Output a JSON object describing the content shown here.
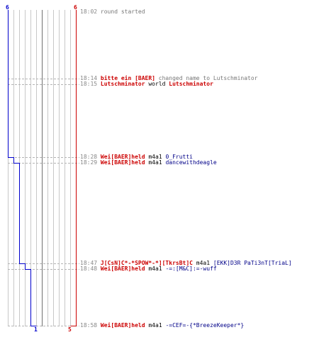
{
  "colors": {
    "team_blue": "#0000cc",
    "team_red": "#cc0000",
    "grid": "#c8c8c8",
    "center": "#707070"
  },
  "score": {
    "blue_start": "6",
    "red_start": "6",
    "blue_end": "1",
    "red_end": "5"
  },
  "events": [
    {
      "time": "18:02",
      "parts": [
        {
          "text": "round started",
          "style": "sys"
        }
      ]
    },
    {
      "time": "18:14",
      "parts": [
        {
          "text": "bitte ein [BAER]",
          "style": "p"
        },
        {
          "text": " changed name to Lutschminator",
          "style": "sys"
        }
      ]
    },
    {
      "time": "18:15",
      "parts": [
        {
          "text": "Lutschminator",
          "style": "p"
        },
        {
          "text": " world ",
          "style": "k"
        },
        {
          "text": "Lutschminator",
          "style": "p"
        }
      ]
    },
    {
      "time": "18:28",
      "parts": [
        {
          "text": "Wei[BAER]held",
          "style": "p"
        },
        {
          "text": " m4a1 ",
          "style": "k"
        },
        {
          "text": "0_Frutti",
          "style": "b"
        }
      ]
    },
    {
      "time": "18:29",
      "parts": [
        {
          "text": "Wei[BAER]held",
          "style": "p"
        },
        {
          "text": " m4a1 ",
          "style": "k"
        },
        {
          "text": "dancewithdeagle",
          "style": "b"
        }
      ]
    },
    {
      "time": "18:47",
      "parts": [
        {
          "text": "J[CsN]C*-*SPOW*-*][TkrsBt]C",
          "style": "p"
        },
        {
          "text": " m4a1 ",
          "style": "k"
        },
        {
          "text": "[EKK]D3R PaTi3nT[TriaL]",
          "style": "b"
        }
      ]
    },
    {
      "time": "18:48",
      "parts": [
        {
          "text": "Wei[BAER]held",
          "style": "p"
        },
        {
          "text": " m4a1 ",
          "style": "k"
        },
        {
          "text": "-=:[M&C]:=-wuff",
          "style": "b"
        }
      ]
    },
    {
      "time": "18:58",
      "parts": [
        {
          "text": "Wei[BAER]held",
          "style": "p"
        },
        {
          "text": " m4a1 ",
          "style": "k"
        },
        {
          "text": "-=CEF=-{*BreezeKeeper*}",
          "style": "b"
        }
      ]
    }
  ]
}
